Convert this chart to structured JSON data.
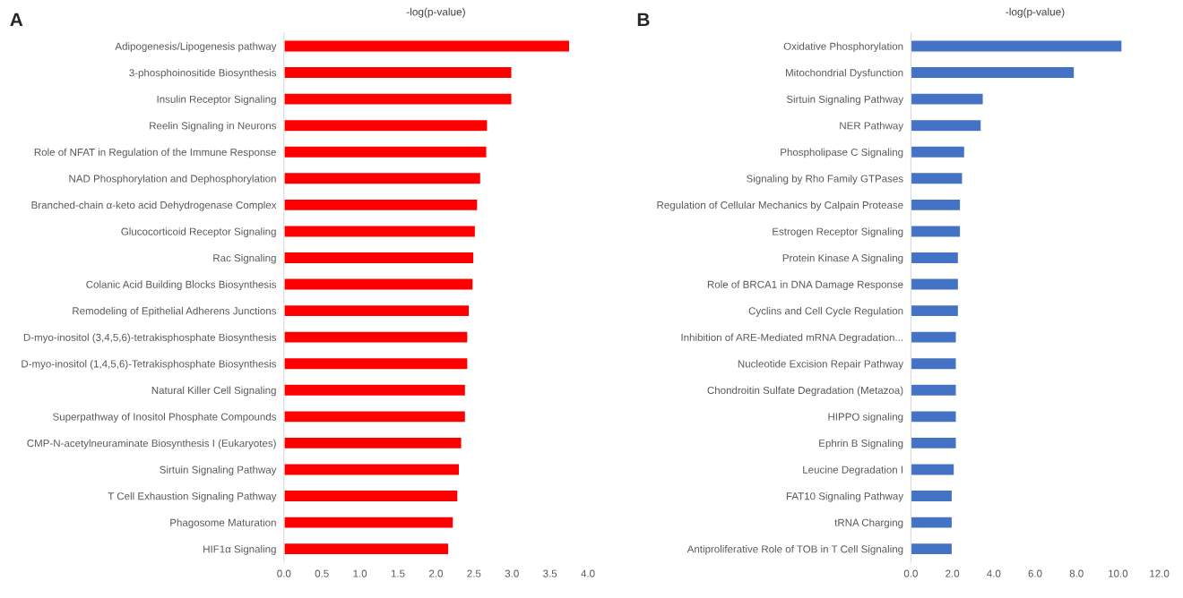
{
  "chart_data": [
    {
      "type": "bar",
      "orientation": "horizontal",
      "title": "-log(p-value)",
      "annotations": [
        "A"
      ],
      "grid": false,
      "legend": false,
      "categories": [
        "Adipogenesis/Lipogenesis pathway",
        "3-phosphoinositide Biosynthesis",
        "Insulin Receptor Signaling",
        "Reelin Signaling in Neurons",
        "Role of NFAT in Regulation of the Immune Response",
        "NAD Phosphorylation and Dephosphorylation",
        "Branched-chain α-keto acid Dehydrogenase Complex",
        "Glucocorticoid Receptor Signaling",
        "Rac Signaling",
        "Colanic Acid Building Blocks Biosynthesis",
        "Remodeling of Epithelial Adherens Junctions",
        "D-myo-inositol (3,4,5,6)-tetrakisphosphate Biosynthesis",
        "D-myo-inositol (1,4,5,6)-Tetrakisphosphate Biosynthesis",
        "Natural Killer Cell Signaling",
        "Superpathway of Inositol Phosphate Compounds",
        "CMP-N-acetylneuraminate Biosynthesis I (Eukaryotes)",
        "Sirtuin Signaling Pathway",
        "T Cell Exhaustion Signaling Pathway",
        "Phagosome Maturation",
        "HIF1α Signaling"
      ],
      "values": [
        3.76,
        3.0,
        3.0,
        2.68,
        2.67,
        2.59,
        2.55,
        2.52,
        2.5,
        2.49,
        2.44,
        2.42,
        2.42,
        2.39,
        2.39,
        2.34,
        2.31,
        2.29,
        2.23,
        2.17
      ],
      "color": "#ff0000",
      "xlim": [
        0,
        4
      ],
      "xticks": [
        {
          "value": 0,
          "label": "0.0"
        },
        0.5,
        {
          "value": 1,
          "label": "1.0"
        },
        1.5,
        {
          "value": 2,
          "label": "2.0"
        },
        2.5,
        {
          "value": 3,
          "label": "3.0"
        },
        3.5,
        {
          "value": 4,
          "label": "4.0"
        }
      ]
    },
    {
      "type": "bar",
      "orientation": "horizontal",
      "title": "-log(p-value)",
      "annotations": [
        "B"
      ],
      "grid": false,
      "legend": false,
      "categories": [
        "Oxidative Phosphorylation",
        "Mitochondrial Dysfunction",
        "Sirtuin Signaling Pathway",
        "NER Pathway",
        "Phospholipase C Signaling",
        "Signaling by Rho Family GTPases",
        "Regulation of Cellular Mechanics by Calpain Protease",
        "Estrogen Receptor Signaling",
        "Protein Kinase A Signaling",
        "Role of BRCA1 in DNA Damage Response",
        "Cyclins and Cell Cycle Regulation",
        "Inhibition of ARE-Mediated mRNA Degradation...",
        "Nucleotide Excision Repair Pathway",
        "Chondroitin Sulfate Degradation (Metazoa)",
        "HIPPO signaling",
        "Ephrin B Signaling",
        "Leucine Degradation I",
        "FAT10 Signaling Pathway",
        "tRNA Charging",
        "Antiproliferative Role of TOB in T Cell Signaling"
      ],
      "values": [
        10.2,
        7.9,
        3.5,
        3.4,
        2.6,
        2.5,
        2.4,
        2.4,
        2.3,
        2.3,
        2.3,
        2.2,
        2.2,
        2.2,
        2.2,
        2.2,
        2.1,
        2.0,
        2.0,
        2.0
      ],
      "color": "#4472c4",
      "xlim": [
        0,
        12
      ],
      "xticks": [
        {
          "value": 0,
          "label": "0.0"
        },
        {
          "value": 2,
          "label": "2.0"
        },
        {
          "value": 4,
          "label": "4.0"
        },
        {
          "value": 6,
          "label": "6.0"
        },
        {
          "value": 8,
          "label": "8.0"
        },
        {
          "value": 10,
          "label": "10.0"
        },
        {
          "value": 12,
          "label": "12.0"
        }
      ]
    }
  ]
}
